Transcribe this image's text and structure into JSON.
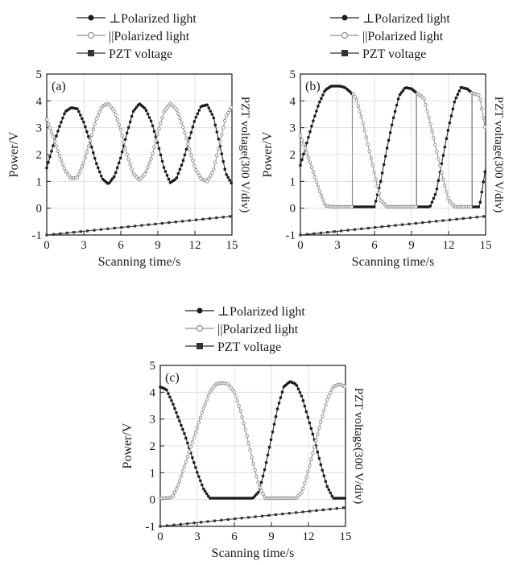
{
  "chart_data": [
    {
      "type": "line",
      "panel_label": "(a)",
      "xlabel": "Scanning time/s",
      "ylabel": "Power/V",
      "ylabel_right": "PZT voltage(300 V/div)",
      "xlim": [
        0,
        15
      ],
      "ylim": [
        -1,
        5
      ],
      "xticks": [
        0,
        3,
        6,
        9,
        12,
        15
      ],
      "yticks": [
        -1,
        0,
        1,
        2,
        3,
        4,
        5
      ],
      "grid": true,
      "legend_position": "top",
      "series": [
        {
          "name": "⊥Polarized light",
          "marker": "filled-circle",
          "x": [
            0,
            0.5,
            1,
            1.5,
            2,
            2.5,
            3,
            3.5,
            4,
            4.5,
            5,
            5.5,
            6,
            6.5,
            7,
            7.5,
            8,
            8.5,
            9,
            9.5,
            10,
            10.5,
            11,
            11.5,
            12,
            12.5,
            13,
            13.5,
            14,
            14.5,
            15
          ],
          "y": [
            1.5,
            2.3,
            3.0,
            3.6,
            3.75,
            3.7,
            3.2,
            2.5,
            1.7,
            1.1,
            0.9,
            1.2,
            1.9,
            2.8,
            3.6,
            3.9,
            3.7,
            3.2,
            2.4,
            1.5,
            0.95,
            1.1,
            1.7,
            2.5,
            3.3,
            3.8,
            3.85,
            3.4,
            2.4,
            1.3,
            0.9
          ]
        },
        {
          "name": "||Polarized light",
          "marker": "open-circle",
          "x": [
            0,
            0.5,
            1,
            1.5,
            2,
            2.5,
            3,
            3.5,
            4,
            4.5,
            5,
            5.5,
            6,
            6.5,
            7,
            7.5,
            8,
            8.5,
            9,
            9.5,
            10,
            10.5,
            11,
            11.5,
            12,
            12.5,
            13,
            13.5,
            14,
            14.5,
            15
          ],
          "y": [
            3.3,
            2.7,
            2.0,
            1.4,
            1.1,
            1.15,
            1.7,
            2.5,
            3.3,
            3.8,
            3.9,
            3.6,
            2.9,
            2.0,
            1.3,
            1.05,
            1.3,
            1.9,
            2.8,
            3.6,
            3.9,
            3.7,
            3.1,
            2.3,
            1.5,
            1.1,
            1.0,
            1.4,
            2.4,
            3.4,
            3.8
          ]
        },
        {
          "name": "PZT voltage",
          "marker": "filled-square",
          "x": [
            0,
            15
          ],
          "y": [
            -1.0,
            -0.3
          ]
        }
      ]
    },
    {
      "type": "line",
      "panel_label": "(b)",
      "xlabel": "Scanning time/s",
      "ylabel": "Power/V",
      "ylabel_right": "PZT voltage(300 V/div)",
      "xlim": [
        0,
        15
      ],
      "ylim": [
        -1,
        5
      ],
      "xticks": [
        0,
        3,
        6,
        9,
        12,
        15
      ],
      "yticks": [
        -1,
        0,
        1,
        2,
        3,
        4,
        5
      ],
      "grid": true,
      "legend_position": "top",
      "series": [
        {
          "name": "⊥Polarized light",
          "marker": "filled-circle",
          "x": [
            0,
            0.5,
            1,
            1.5,
            2,
            2.5,
            2.8,
            3.2,
            3.6,
            4.0,
            4.2,
            4.21,
            5,
            5.5,
            6,
            6.5,
            7,
            7.5,
            8,
            8.5,
            9,
            9.4,
            9.41,
            10,
            10.5,
            11,
            11.5,
            12,
            12.5,
            13,
            13.5,
            13.9,
            13.91,
            14.5,
            15
          ],
          "y": [
            1.6,
            2.4,
            3.2,
            3.9,
            4.4,
            4.55,
            4.55,
            4.55,
            4.5,
            4.35,
            4.25,
            0.05,
            0.05,
            0.05,
            0.05,
            1.0,
            2.2,
            3.3,
            4.2,
            4.5,
            4.45,
            4.3,
            0.05,
            0.05,
            0.05,
            0.6,
            1.8,
            3.0,
            4.0,
            4.5,
            4.45,
            4.3,
            0.05,
            0.05,
            1.5
          ]
        },
        {
          "name": "||Polarized light",
          "marker": "open-circle",
          "x": [
            0,
            0.5,
            1,
            1.5,
            2,
            2.5,
            3,
            3.5,
            4,
            4.2,
            4.21,
            4.5,
            5,
            5.5,
            6,
            6.5,
            7,
            7.5,
            8,
            8.5,
            9,
            9.4,
            9.41,
            10,
            10.5,
            11,
            11.5,
            12,
            12.5,
            13,
            13.5,
            13.9,
            13.91,
            14.5,
            15
          ],
          "y": [
            2.7,
            2.1,
            1.4,
            0.7,
            0.1,
            0.05,
            0.05,
            0.05,
            0.05,
            0.05,
            4.3,
            4.1,
            3.3,
            2.3,
            1.3,
            0.3,
            0.05,
            0.05,
            0.05,
            0.05,
            0.05,
            0.05,
            4.3,
            4.1,
            3.2,
            2.2,
            1.2,
            0.3,
            0.05,
            0.05,
            0.05,
            0.05,
            4.3,
            4.2,
            2.9
          ]
        },
        {
          "name": "PZT voltage",
          "marker": "filled-square",
          "x": [
            0,
            15
          ],
          "y": [
            -1.0,
            -0.3
          ]
        }
      ]
    },
    {
      "type": "line",
      "panel_label": "(c)",
      "xlabel": "Scanning time/s",
      "ylabel": "Power/V",
      "ylabel_right": "PZT voltage(300 V/div)",
      "xlim": [
        0,
        15
      ],
      "ylim": [
        -1,
        5
      ],
      "xticks": [
        0,
        3,
        6,
        9,
        12,
        15
      ],
      "yticks": [
        -1,
        0,
        1,
        2,
        3,
        4,
        5
      ],
      "grid": true,
      "legend_position": "top",
      "series": [
        {
          "name": "⊥Polarized light",
          "marker": "filled-circle",
          "x": [
            0,
            0.5,
            1,
            1.5,
            2,
            2.5,
            3,
            3.5,
            4,
            4.5,
            5,
            5.5,
            6,
            6.5,
            7,
            7.5,
            8,
            8.5,
            9,
            9.5,
            10,
            10.5,
            11,
            11.5,
            12,
            12.5,
            13,
            13.5,
            14,
            14.5,
            15
          ],
          "y": [
            4.2,
            4.1,
            3.6,
            3.0,
            2.4,
            1.7,
            1.0,
            0.4,
            0.05,
            0.05,
            0.05,
            0.05,
            0.05,
            0.05,
            0.05,
            0.05,
            0.3,
            1.2,
            2.3,
            3.4,
            4.2,
            4.4,
            4.3,
            3.8,
            3.0,
            2.2,
            1.3,
            0.5,
            0.05,
            0.05,
            0.05
          ]
        },
        {
          "name": "||Polarized light",
          "marker": "open-circle",
          "x": [
            0,
            0.5,
            1,
            1.5,
            2,
            2.5,
            3,
            3.5,
            4,
            4.5,
            5,
            5.5,
            6,
            6.5,
            7,
            7.5,
            8,
            8.5,
            9,
            9.5,
            10,
            10.5,
            11,
            11.5,
            12,
            12.5,
            13,
            13.5,
            14,
            14.5,
            15
          ],
          "y": [
            0.05,
            0.05,
            0.1,
            0.6,
            1.3,
            2.0,
            2.7,
            3.4,
            4.0,
            4.3,
            4.35,
            4.3,
            4.0,
            3.3,
            2.4,
            1.4,
            0.5,
            0.05,
            0.05,
            0.05,
            0.05,
            0.05,
            0.05,
            0.3,
            1.1,
            2.0,
            2.9,
            3.7,
            4.2,
            4.3,
            4.2
          ]
        },
        {
          "name": "PZT voltage",
          "marker": "filled-square",
          "x": [
            0,
            15
          ],
          "y": [
            -1.0,
            -0.3
          ]
        }
      ]
    }
  ],
  "colors": {
    "perp": "#1c1c1c",
    "para": "#8f8f8f",
    "pzt": "#333333",
    "axis": "#1a1a1a",
    "grid": "#d8d8d8"
  }
}
